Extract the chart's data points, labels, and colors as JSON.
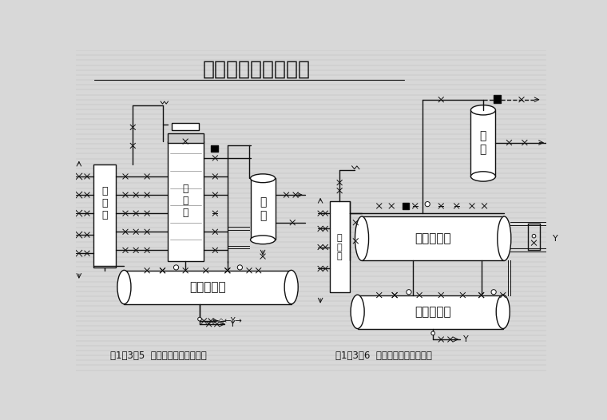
{
  "title": "水冷式冷凝器的配置",
  "title_fontsize": 18,
  "background_color": "#d8d8d8",
  "line_color": "#111111",
  "caption_left": "图1－3－5  立式冷凝器的管道配置",
  "caption_right": "图1－3－6  卧式冷凝器的管道配置",
  "caption_fontsize": 8.5
}
